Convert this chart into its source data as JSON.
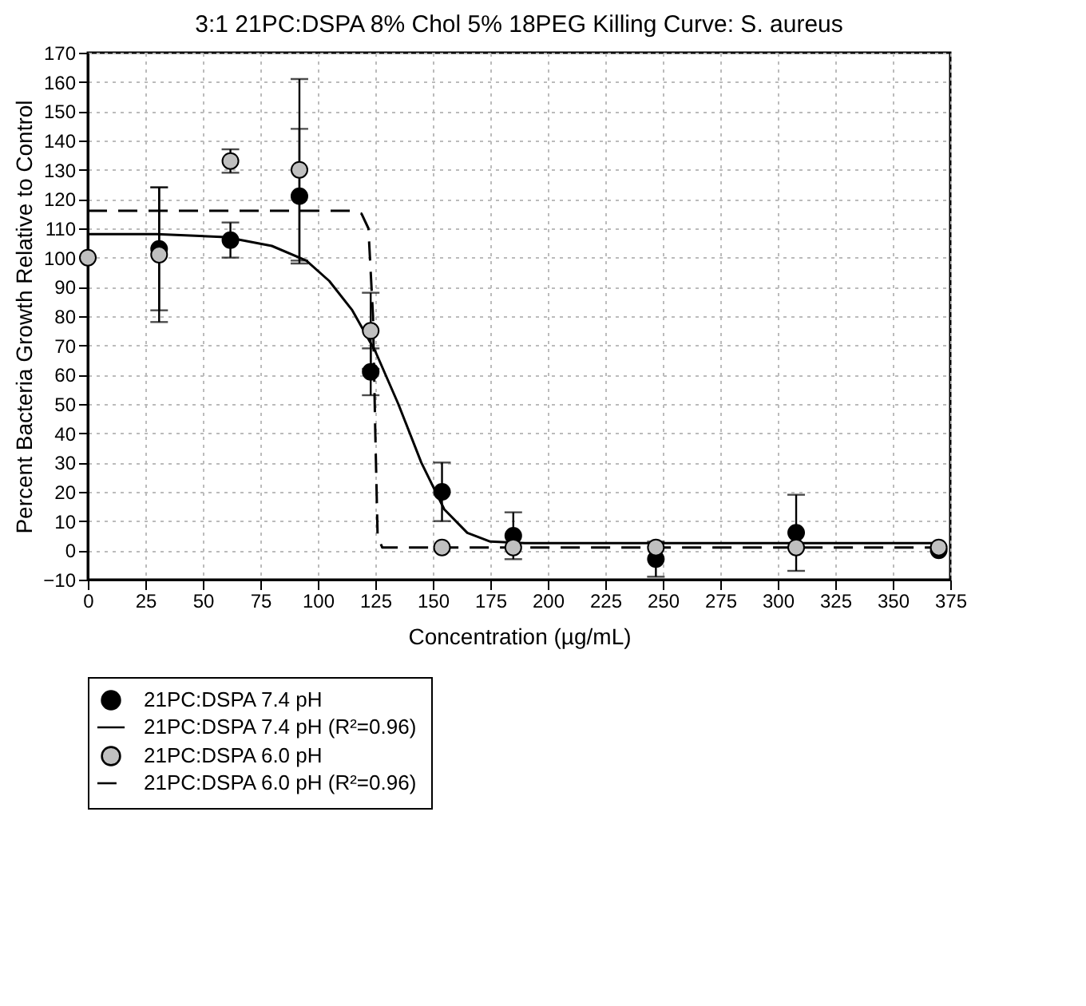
{
  "chart_data": {
    "type": "scatter",
    "title": "3:1 21PC:DSPA 8% Chol 5% 18PEG Killing Curve: S. aureus",
    "xlabel": "Concentration (µg/mL)",
    "ylabel": "Percent Bacteria Growth Relative to Control",
    "xlim": [
      0,
      375
    ],
    "xticks": [
      0,
      25,
      50,
      75,
      100,
      125,
      150,
      175,
      200,
      225,
      250,
      275,
      300,
      325,
      350,
      375
    ],
    "ylim": [
      -10,
      170
    ],
    "yticks": [
      -10,
      0,
      10,
      20,
      30,
      40,
      50,
      60,
      70,
      80,
      90,
      100,
      110,
      120,
      130,
      140,
      150,
      160,
      170
    ],
    "grid": true,
    "legend": "bottom",
    "marker": "circle",
    "series": [
      {
        "name": "21PC:DSPA 7.4 pH",
        "color": "#000000",
        "x": [
          31,
          62,
          92,
          123,
          154,
          185,
          247,
          308,
          370
        ],
        "values": [
          103,
          106,
          121,
          61,
          20,
          5,
          -3,
          6,
          0
        ],
        "errors": [
          21,
          6,
          23,
          8,
          10,
          8,
          6,
          13,
          null
        ]
      },
      {
        "name": "21PC:DSPA 7.4 pH (R²=0.96)",
        "type": "line",
        "color": "#000000",
        "line_style": "solid",
        "marker": "none",
        "x": [
          0,
          30,
          60,
          80,
          95,
          105,
          115,
          125,
          135,
          145,
          155,
          165,
          175,
          190,
          370
        ],
        "values": [
          108,
          108,
          107,
          104,
          99,
          92,
          82,
          68,
          50,
          30,
          14,
          6,
          3,
          2.5,
          2.5
        ]
      },
      {
        "name": "21PC:DSPA 6.0 pH",
        "color": "#c0c0c0",
        "x": [
          0,
          31,
          62,
          92,
          123,
          154,
          185,
          247,
          308,
          370
        ],
        "values": [
          100,
          101,
          133,
          130,
          75,
          1,
          1,
          1,
          1,
          1
        ],
        "errors": [
          null,
          23,
          4,
          31,
          13,
          null,
          null,
          null,
          null,
          null
        ]
      },
      {
        "name": "21PC:DSPA 6.0 pH (R²=0.96)",
        "type": "line",
        "color": "#000000",
        "line_style": "dashed",
        "marker": "none",
        "x": [
          0,
          115,
          119,
          122,
          124,
          125,
          126,
          128,
          370
        ],
        "values": [
          116,
          116,
          115,
          110,
          80,
          40,
          5,
          1,
          1
        ]
      }
    ]
  }
}
